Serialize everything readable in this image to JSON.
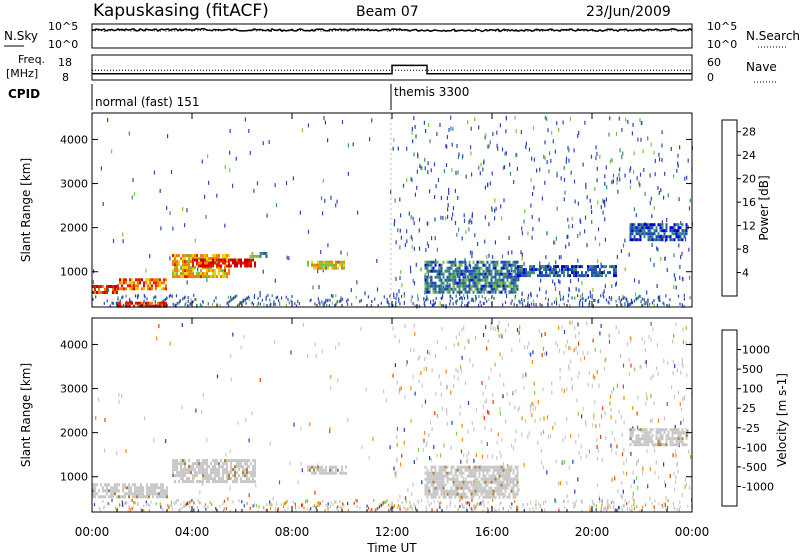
{
  "header": {
    "station": "Kapuskasing (fitACF)",
    "beam": "Beam 07",
    "date": "23/Jun/2009"
  },
  "noise_panel": {
    "left_label": "N.Sky",
    "right_label": "N.Search",
    "left_ticks": [
      "10^5",
      "10^0"
    ],
    "right_ticks": [
      "10^5",
      "10^0"
    ]
  },
  "freq_panel": {
    "left_label_1": "Freq.",
    "left_label_2": "[MHz]",
    "right_label": "Nave",
    "left_ticks": [
      "18",
      "8"
    ],
    "right_ticks": [
      "60",
      "0"
    ]
  },
  "cpid": {
    "label": "CPID",
    "segments": [
      {
        "name": "normal (fast) 151",
        "start_hour": 0,
        "end_hour": 12
      },
      {
        "name": "themis 3300",
        "start_hour": 12,
        "end_hour": 24
      }
    ]
  },
  "time_axis": {
    "label": "Time UT",
    "ticks": [
      "00:00",
      "04:00",
      "08:00",
      "12:00",
      "16:00",
      "20:00",
      "00:00"
    ]
  },
  "colors": {
    "power_scale": [
      "#0000dd",
      "#2050b0",
      "#3d8a7a",
      "#7fc040",
      "#f0d000",
      "#f08000",
      "#e02000",
      "#cc0000"
    ],
    "velocity_scale": [
      "#2040b0",
      "#3a70c8",
      "#2aa040",
      "#80d040",
      "#c8c8c8",
      "#f0e000",
      "#f09000",
      "#e04000",
      "#cc0000"
    ]
  },
  "chart_data": [
    {
      "type": "line",
      "name": "noise",
      "x_label": "Time UT",
      "xlim": [
        0,
        24
      ],
      "y_scale": "log",
      "ylim": [
        1,
        100000
      ],
      "series": [
        {
          "name": "N.Sky",
          "style": "solid",
          "x": [
            0,
            4,
            8,
            12,
            16,
            20,
            24
          ],
          "y": [
            10000,
            12000,
            9000,
            10000,
            8000,
            9000,
            12000
          ]
        },
        {
          "name": "N.Search",
          "style": "dotted",
          "x": [
            0,
            4,
            8,
            12,
            16,
            20,
            24
          ],
          "y": [
            6000,
            7000,
            6000,
            7000,
            6000,
            6500,
            8000
          ]
        }
      ]
    },
    {
      "type": "line",
      "name": "frequency",
      "x_label": "Time UT",
      "xlim": [
        0,
        24
      ],
      "ylim_freq_mhz": [
        8,
        18
      ],
      "ylim_nave": [
        0,
        60
      ],
      "series": [
        {
          "name": "Freq.",
          "style": "solid",
          "x": [
            0,
            12,
            12,
            13.4,
            13.4,
            24
          ],
          "y": [
            10,
            10,
            14,
            14,
            10,
            10
          ]
        },
        {
          "name": "Nave",
          "style": "dotted",
          "x": [
            0,
            24
          ],
          "y": [
            22,
            22
          ]
        }
      ]
    },
    {
      "type": "heatmap",
      "name": "power",
      "y_label": "Slant Range [km]",
      "x_label": "Time UT",
      "xlim": [
        0,
        24
      ],
      "ylim": [
        200,
        4600
      ],
      "y_ticks": [
        1000,
        2000,
        3000,
        4000
      ],
      "colorbar": {
        "label": "Power [dB]",
        "ticks": [
          4,
          8,
          12,
          16,
          20,
          24,
          28
        ],
        "range": [
          0,
          30
        ]
      },
      "regions": [
        {
          "t": [
            0.0,
            1.0
          ],
          "r": [
            550,
            700
          ],
          "v": 24
        },
        {
          "t": [
            1.0,
            3.0
          ],
          "r": [
            600,
            850
          ],
          "v": 22
        },
        {
          "t": [
            3.2,
            5.5
          ],
          "r": [
            900,
            1400
          ],
          "v": 18
        },
        {
          "t": [
            4.0,
            6.5
          ],
          "r": [
            1100,
            1300
          ],
          "v": 26
        },
        {
          "t": [
            1.0,
            3.0
          ],
          "r": [
            200,
            320
          ],
          "v": 26
        },
        {
          "t": [
            6.3,
            7.0
          ],
          "r": [
            1350,
            1450
          ],
          "v": 10
        },
        {
          "t": [
            8.6,
            10.2
          ],
          "r": [
            1050,
            1250
          ],
          "v": 16
        },
        {
          "t": [
            13.3,
            17.0
          ],
          "r": [
            550,
            1250
          ],
          "v": 8
        },
        {
          "t": [
            17.0,
            21.0
          ],
          "r": [
            900,
            1150
          ],
          "v": 6
        },
        {
          "t": [
            21.5,
            23.8
          ],
          "r": [
            1700,
            2100
          ],
          "v": 6
        }
      ]
    },
    {
      "type": "heatmap",
      "name": "velocity",
      "y_label": "Slant Range [km]",
      "x_label": "Time UT",
      "xlim": [
        0,
        24
      ],
      "ylim": [
        200,
        4600
      ],
      "y_ticks": [
        1000,
        2000,
        3000,
        4000
      ],
      "colorbar": {
        "label": "Velocity [m s-1]",
        "ticks": [
          1000,
          500,
          100,
          25,
          -25,
          -100,
          -500,
          -1000
        ]
      },
      "regions": [
        {
          "t": [
            0.0,
            3.0
          ],
          "r": [
            550,
            850
          ],
          "v": 0
        },
        {
          "t": [
            3.2,
            6.5
          ],
          "r": [
            900,
            1400
          ],
          "v": 0
        },
        {
          "t": [
            8.6,
            10.2
          ],
          "r": [
            1050,
            1250
          ],
          "v": 0
        },
        {
          "t": [
            13.3,
            17.0
          ],
          "r": [
            550,
            1250
          ],
          "v": 0
        },
        {
          "t": [
            21.5,
            23.8
          ],
          "r": [
            1700,
            2100
          ],
          "v": 0
        }
      ]
    }
  ]
}
